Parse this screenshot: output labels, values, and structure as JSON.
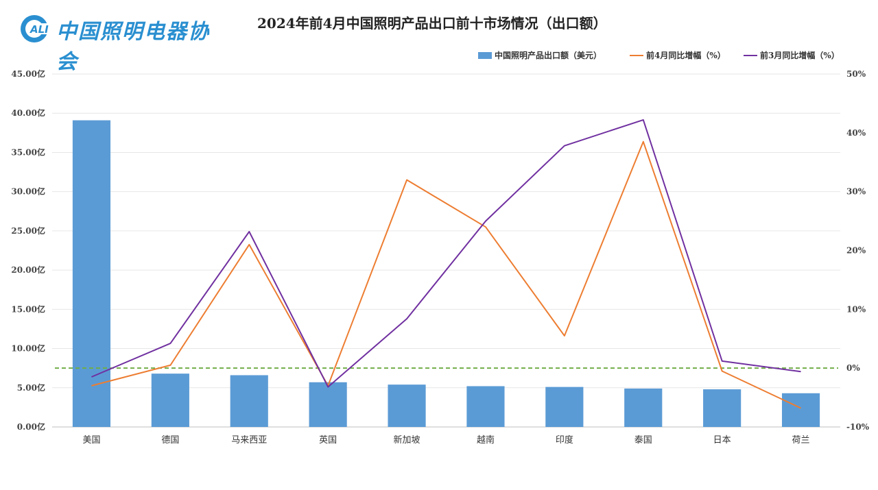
{
  "header": {
    "logo_text": "中国照明电器协会",
    "logo_badge": "ALI",
    "title": "2024年前4月中国照明产品出口前十市场情况（出口额）"
  },
  "colors": {
    "bar": "#5b9bd5",
    "line_apr": "#ed7d31",
    "line_mar": "#7030a0",
    "zero_line": "#70ad47",
    "logo": "#2a8fd0"
  },
  "chart_data": {
    "type": "bar",
    "categories": [
      "美国",
      "德国",
      "马来西亚",
      "英国",
      "新加坡",
      "越南",
      "印度",
      "泰国",
      "日本",
      "荷兰"
    ],
    "y_left": {
      "ylim": [
        0,
        45
      ],
      "ticks": [
        0,
        5,
        10,
        15,
        20,
        25,
        30,
        35,
        40,
        45
      ],
      "tick_labels": [
        "0.00亿",
        "5.00亿",
        "10.00亿",
        "15.00亿",
        "20.00亿",
        "25.00亿",
        "30.00亿",
        "35.00亿",
        "40.00亿",
        "45.00亿"
      ]
    },
    "y_right": {
      "ylim": [
        -10,
        50
      ],
      "ticks": [
        -10,
        0,
        10,
        20,
        30,
        40,
        50
      ],
      "tick_labels": [
        "-10%",
        "0%",
        "10%",
        "20%",
        "30%",
        "40%",
        "50%"
      ]
    },
    "series": [
      {
        "name": "中国照明产品出口额（美元）",
        "type": "bar",
        "axis": "left",
        "values": [
          39.1,
          6.8,
          6.6,
          5.7,
          5.4,
          5.2,
          5.1,
          4.9,
          4.8,
          4.3
        ]
      },
      {
        "name": "前4月同比增幅（%）",
        "type": "line",
        "axis": "right",
        "values": [
          -3.0,
          0.5,
          21.0,
          -3.0,
          32.0,
          24.0,
          5.5,
          38.5,
          -0.5,
          -6.8
        ]
      },
      {
        "name": "前3月同比增幅（%）",
        "type": "line",
        "axis": "right",
        "values": [
          -1.5,
          4.2,
          23.2,
          -3.2,
          8.4,
          25.0,
          37.8,
          42.2,
          1.2,
          -0.6
        ]
      }
    ],
    "reference_line": {
      "axis": "right",
      "value": 0,
      "style": "dashed"
    },
    "grid": true,
    "legend": "top-right"
  }
}
